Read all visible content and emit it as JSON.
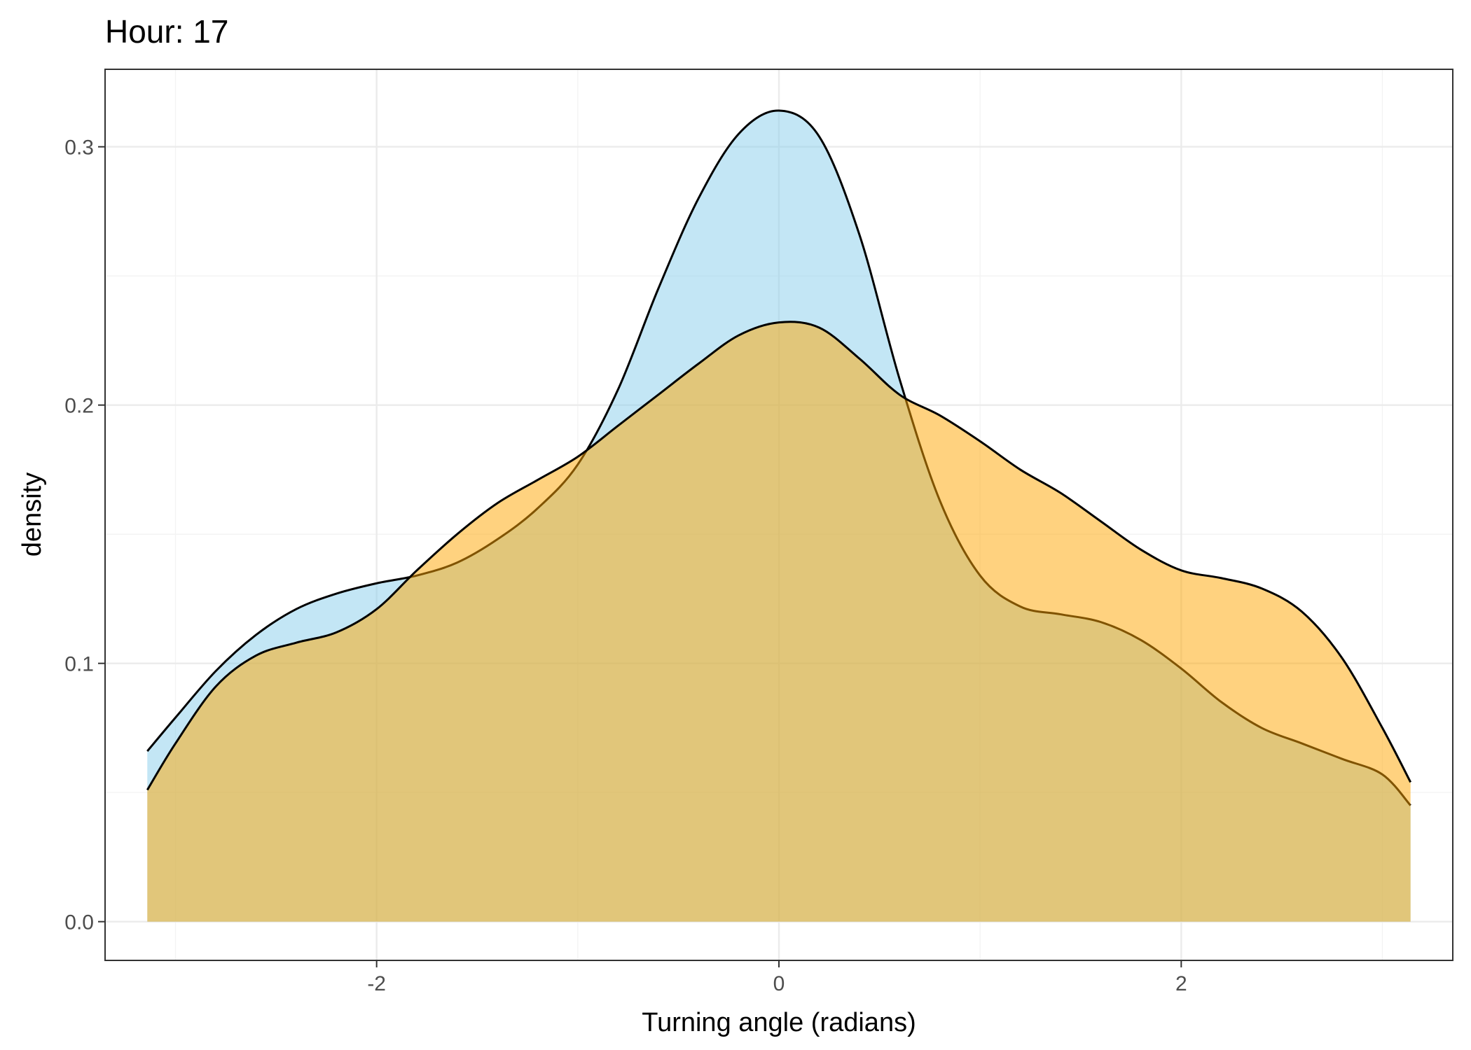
{
  "chart_data": {
    "type": "area",
    "title": "Hour: 17",
    "xlabel": "Turning angle (radians)",
    "ylabel": "density",
    "xlim": [
      -3.35,
      3.35
    ],
    "ylim": [
      -0.015,
      0.33
    ],
    "x_major_ticks": [
      -2,
      0,
      2
    ],
    "x_tick_labels": [
      "-2",
      "0",
      "2"
    ],
    "x_minor_ticks": [
      -3,
      -1,
      1,
      3
    ],
    "y_major_ticks": [
      0.0,
      0.1,
      0.2,
      0.3
    ],
    "y_tick_labels": [
      "0.0",
      "0.1",
      "0.2",
      "0.3"
    ],
    "y_minor_ticks": [
      0.05,
      0.15,
      0.25
    ],
    "grid": true,
    "legend": "none",
    "series": [
      {
        "fill": "#87ceeb",
        "fill_opacity": 0.5,
        "points": [
          [
            -3.14,
            0.066
          ],
          [
            -3.0,
            0.079
          ],
          [
            -2.8,
            0.097
          ],
          [
            -2.6,
            0.111
          ],
          [
            -2.4,
            0.121
          ],
          [
            -2.2,
            0.127
          ],
          [
            -2.0,
            0.131
          ],
          [
            -1.8,
            0.134
          ],
          [
            -1.6,
            0.139
          ],
          [
            -1.4,
            0.148
          ],
          [
            -1.2,
            0.16
          ],
          [
            -1.0,
            0.177
          ],
          [
            -0.8,
            0.206
          ],
          [
            -0.6,
            0.245
          ],
          [
            -0.4,
            0.28
          ],
          [
            -0.2,
            0.305
          ],
          [
            0.0,
            0.314
          ],
          [
            0.2,
            0.304
          ],
          [
            0.4,
            0.266
          ],
          [
            0.6,
            0.21
          ],
          [
            0.8,
            0.163
          ],
          [
            1.0,
            0.134
          ],
          [
            1.2,
            0.122
          ],
          [
            1.4,
            0.119
          ],
          [
            1.6,
            0.116
          ],
          [
            1.8,
            0.109
          ],
          [
            2.0,
            0.098
          ],
          [
            2.2,
            0.085
          ],
          [
            2.4,
            0.075
          ],
          [
            2.6,
            0.069
          ],
          [
            2.8,
            0.063
          ],
          [
            3.0,
            0.057
          ],
          [
            3.14,
            0.045
          ]
        ]
      },
      {
        "fill": "#ffa500",
        "fill_opacity": 0.5,
        "points": [
          [
            -3.14,
            0.051
          ],
          [
            -3.0,
            0.069
          ],
          [
            -2.8,
            0.091
          ],
          [
            -2.6,
            0.103
          ],
          [
            -2.4,
            0.108
          ],
          [
            -2.2,
            0.112
          ],
          [
            -2.0,
            0.121
          ],
          [
            -1.8,
            0.136
          ],
          [
            -1.6,
            0.15
          ],
          [
            -1.4,
            0.162
          ],
          [
            -1.2,
            0.171
          ],
          [
            -1.0,
            0.18
          ],
          [
            -0.8,
            0.192
          ],
          [
            -0.6,
            0.204
          ],
          [
            -0.4,
            0.216
          ],
          [
            -0.2,
            0.227
          ],
          [
            0.0,
            0.232
          ],
          [
            0.2,
            0.23
          ],
          [
            0.4,
            0.218
          ],
          [
            0.6,
            0.204
          ],
          [
            0.8,
            0.196
          ],
          [
            1.0,
            0.186
          ],
          [
            1.2,
            0.175
          ],
          [
            1.4,
            0.166
          ],
          [
            1.6,
            0.155
          ],
          [
            1.8,
            0.144
          ],
          [
            2.0,
            0.136
          ],
          [
            2.2,
            0.133
          ],
          [
            2.4,
            0.129
          ],
          [
            2.6,
            0.12
          ],
          [
            2.8,
            0.102
          ],
          [
            3.0,
            0.075
          ],
          [
            3.14,
            0.054
          ]
        ]
      }
    ]
  }
}
